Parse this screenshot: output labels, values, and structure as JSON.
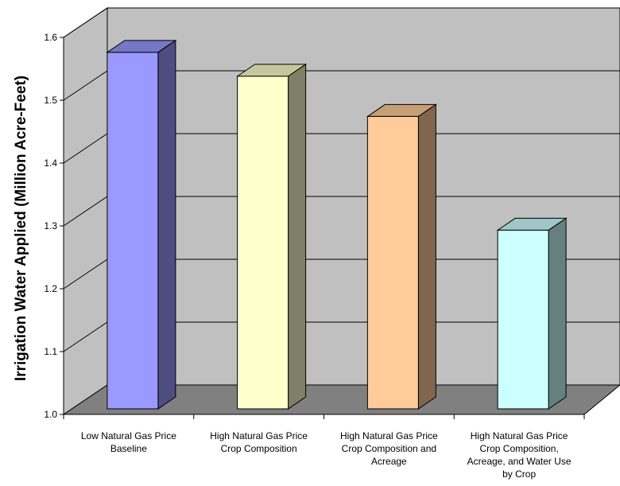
{
  "chart_data": {
    "type": "bar",
    "title": "",
    "xlabel": "",
    "ylabel": "Irrigation Water Applied (Million Acre-Feet)",
    "ylim": [
      1.0,
      1.6
    ],
    "yticks": [
      "1.0",
      "1.1",
      "1.2",
      "1.3",
      "1.4",
      "1.5",
      "1.6"
    ],
    "grid": true,
    "three_d": true,
    "categories": [
      [
        "Low Natural Gas Price",
        "Baseline"
      ],
      [
        "High Natural Gas Price",
        "Crop Composition"
      ],
      [
        "High Natural Gas Price",
        "Crop Composition and",
        "Acreage"
      ],
      [
        "High Natural Gas Price",
        "Crop Composition,",
        "Acreage, and Water Use",
        "by Crop"
      ]
    ],
    "values": [
      1.585,
      1.547,
      1.483,
      1.302
    ],
    "colors": [
      "#9999ff",
      "#ffffcc",
      "#ffcc99",
      "#ccffff"
    ],
    "back_wall_color": "#c0c0c0",
    "floor_color": "#808080"
  }
}
